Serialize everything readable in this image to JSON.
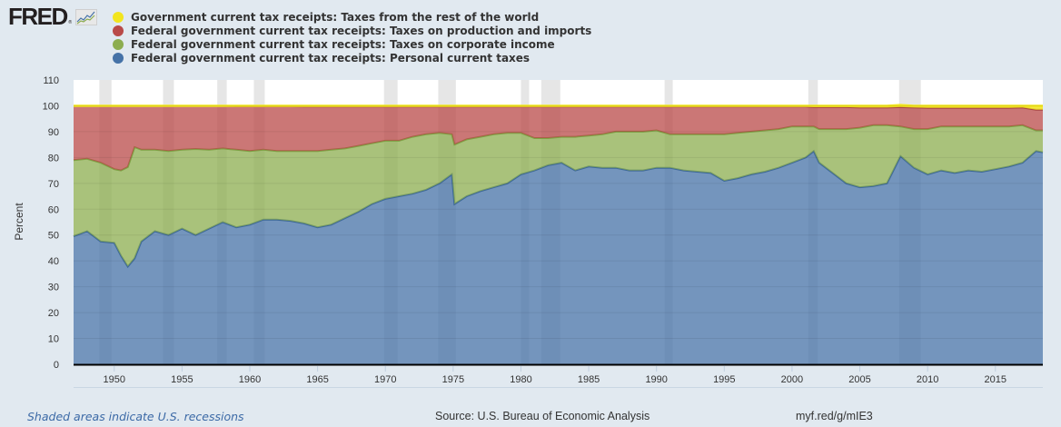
{
  "header": {
    "logo_text": "FRED",
    "logo_reg": "®",
    "logo_icon": "fred-chart-icon"
  },
  "legend": [
    {
      "label": "Government current tax receipts: Taxes from the rest of the world",
      "color": "#f2e51e"
    },
    {
      "label": "Federal government current tax receipts: Taxes on production and imports",
      "color": "#b94a48"
    },
    {
      "label": "Federal government current tax receipts: Taxes on corporate income",
      "color": "#8cad4f"
    },
    {
      "label": "Federal government current tax receipts: Personal current taxes",
      "color": "#4572a7"
    }
  ],
  "footer": {
    "recession_note": "Shaded areas indicate U.S. recessions",
    "source": "Source: U.S. Bureau of Economic Analysis",
    "link": "myf.red/g/mIE3"
  },
  "chart_data": {
    "type": "area",
    "stacked": true,
    "title": "",
    "xlabel": "",
    "ylabel": "Percent",
    "xlim": [
      1947.0,
      2018.5
    ],
    "ylim": [
      0,
      110
    ],
    "yticks": [
      0,
      10,
      20,
      30,
      40,
      50,
      60,
      70,
      80,
      90,
      100,
      110
    ],
    "xticks": [
      1950,
      1955,
      1960,
      1965,
      1970,
      1975,
      1980,
      1985,
      1990,
      1995,
      2000,
      2005,
      2010,
      2015
    ],
    "grid": true,
    "legend_position": "top-left",
    "recessions": [
      [
        1948.9,
        1949.8
      ],
      [
        1953.6,
        1954.4
      ],
      [
        1957.6,
        1958.3
      ],
      [
        1960.3,
        1961.1
      ],
      [
        1969.9,
        1970.9
      ],
      [
        1973.9,
        1975.2
      ],
      [
        1980.0,
        1980.6
      ],
      [
        1981.5,
        1982.9
      ],
      [
        1990.6,
        1991.2
      ],
      [
        2001.2,
        2001.9
      ],
      [
        2007.9,
        2009.5
      ]
    ],
    "x": [
      1947,
      1948,
      1949,
      1950,
      1950.5,
      1951,
      1951.5,
      1952,
      1953,
      1954,
      1955,
      1956,
      1957,
      1958,
      1959,
      1960,
      1961,
      1962,
      1963,
      1964,
      1965,
      1966,
      1967,
      1968,
      1969,
      1970,
      1971,
      1972,
      1973,
      1974,
      1974.9,
      1975.1,
      1976,
      1977,
      1978,
      1979,
      1980,
      1981,
      1982,
      1983,
      1984,
      1985,
      1986,
      1987,
      1988,
      1989,
      1990,
      1991,
      1992,
      1993,
      1994,
      1995,
      1996,
      1997,
      1998,
      1999,
      2000,
      2001,
      2001.6,
      2002,
      2003,
      2004,
      2005,
      2006,
      2007,
      2008,
      2009,
      2010,
      2011,
      2012,
      2013,
      2014,
      2015,
      2016,
      2017,
      2018,
      2018.5
    ],
    "series": [
      {
        "name": "Federal government current tax receipts: Personal current taxes",
        "color": "#4572a7",
        "values": [
          49.5,
          51.5,
          47.5,
          47.0,
          42.0,
          37.8,
          41.0,
          47.5,
          51.5,
          50.0,
          52.5,
          50.0,
          52.5,
          55.0,
          53.0,
          54.0,
          56.0,
          56.0,
          55.5,
          54.5,
          53.0,
          54.0,
          56.5,
          59.0,
          62.0,
          64.0,
          65.0,
          66.0,
          67.5,
          70.0,
          73.5,
          62.0,
          65.0,
          67.0,
          68.5,
          70.0,
          73.5,
          75.0,
          77.0,
          78.0,
          75.0,
          76.5,
          76.0,
          76.0,
          75.0,
          75.0,
          76.0,
          76.0,
          75.0,
          74.5,
          74.0,
          71.0,
          72.0,
          73.5,
          74.5,
          76.0,
          78.0,
          80.0,
          82.5,
          78.0,
          74.0,
          70.0,
          68.5,
          69.0,
          70.0,
          80.5,
          76.0,
          73.5,
          75.0,
          74.0,
          75.0,
          74.5,
          75.5,
          76.5,
          78.0,
          82.5,
          82.0
        ]
      },
      {
        "name": "Federal government current tax receipts: Taxes on corporate income",
        "color": "#8cad4f",
        "values": [
          29.5,
          28.0,
          30.5,
          28.5,
          33.0,
          38.5,
          43.0,
          35.5,
          31.5,
          32.5,
          30.5,
          33.3,
          30.5,
          28.5,
          30.0,
          28.5,
          27.0,
          26.5,
          27.0,
          28.0,
          29.5,
          29.0,
          27.0,
          25.5,
          23.5,
          22.5,
          21.5,
          22.0,
          21.5,
          19.5,
          15.5,
          23.0,
          22.0,
          21.0,
          20.5,
          19.5,
          16.0,
          12.5,
          10.5,
          10.0,
          13.0,
          12.0,
          13.0,
          14.0,
          15.0,
          15.0,
          14.5,
          13.0,
          14.0,
          14.5,
          15.0,
          18.0,
          17.5,
          16.5,
          16.0,
          15.0,
          14.0,
          12.0,
          9.5,
          13.0,
          17.0,
          21.0,
          23.0,
          23.5,
          22.5,
          11.5,
          15.0,
          17.5,
          17.0,
          18.0,
          17.0,
          17.5,
          16.5,
          15.5,
          14.5,
          8.0,
          8.5
        ]
      },
      {
        "name": "Federal government current tax receipts: Taxes on production and imports",
        "color": "#b94a48",
        "values": [
          21.0,
          20.5,
          22.0,
          24.5,
          25.0,
          23.7,
          16.0,
          17.0,
          17.0,
          17.5,
          17.0,
          16.7,
          17.0,
          16.5,
          16.8,
          17.3,
          16.8,
          17.3,
          17.3,
          17.2,
          17.2,
          16.7,
          16.2,
          15.2,
          14.2,
          13.2,
          13.2,
          11.7,
          10.7,
          10.2,
          10.7,
          14.7,
          12.7,
          11.7,
          10.7,
          10.2,
          10.2,
          12.2,
          12.2,
          11.7,
          11.7,
          11.2,
          10.7,
          9.7,
          9.7,
          9.7,
          9.2,
          10.7,
          10.7,
          10.7,
          10.7,
          10.7,
          10.2,
          9.7,
          9.2,
          8.7,
          7.7,
          7.7,
          7.5,
          8.5,
          8.5,
          8.5,
          7.8,
          6.8,
          6.8,
          7.5,
          8.3,
          8.2,
          7.2,
          7.2,
          7.2,
          7.2,
          7.2,
          7.2,
          6.8,
          8.0,
          8.0
        ]
      },
      {
        "name": "Government current tax receipts: Taxes from the rest of the world",
        "color": "#f2e51e",
        "values": [
          0,
          0,
          0,
          0,
          0,
          0,
          0,
          0,
          0,
          0,
          0,
          0,
          0,
          0,
          0.2,
          0.2,
          0.2,
          0.2,
          0.2,
          0.3,
          0.3,
          0.3,
          0.3,
          0.3,
          0.3,
          0.3,
          0.3,
          0.3,
          0.3,
          0.3,
          0.3,
          0.3,
          0.3,
          0.3,
          0.3,
          0.3,
          0.3,
          0.3,
          0.3,
          0.3,
          0.3,
          0.3,
          0.3,
          0.3,
          0.3,
          0.3,
          0.3,
          0.3,
          0.3,
          0.3,
          0.3,
          0.3,
          0.3,
          0.3,
          0.3,
          0.3,
          0.3,
          0.3,
          0.5,
          0.5,
          0.5,
          0.5,
          0.7,
          0.7,
          0.7,
          0.8,
          0.7,
          0.8,
          0.8,
          0.8,
          0.8,
          0.8,
          0.8,
          0.8,
          0.7,
          1.5,
          1.5
        ]
      }
    ]
  }
}
